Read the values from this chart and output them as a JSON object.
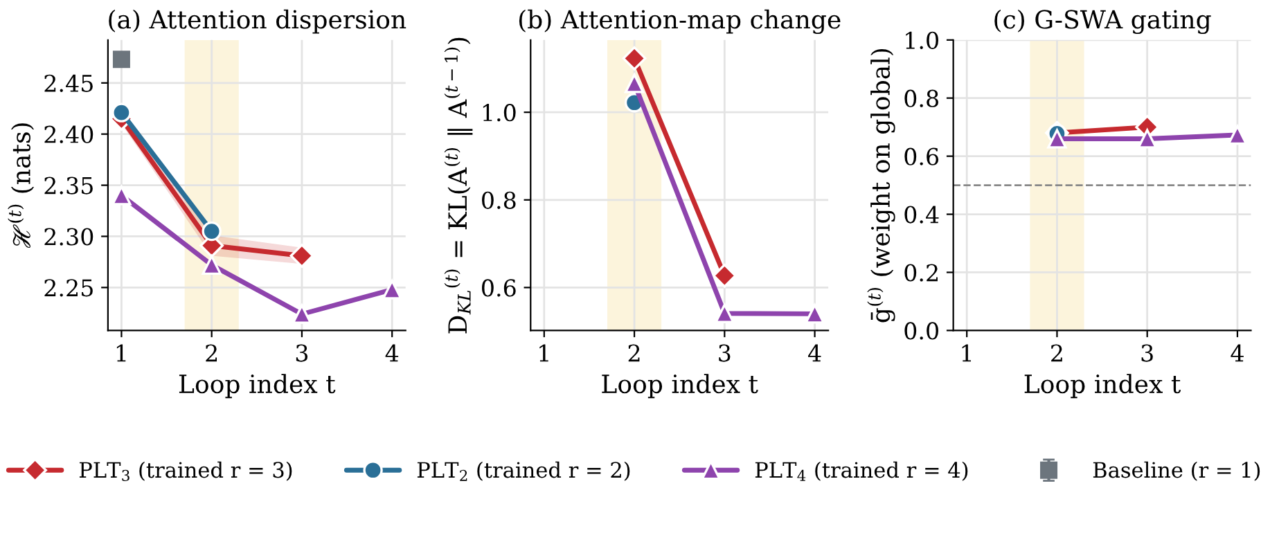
{
  "chart_data": [
    {
      "type": "line",
      "title": "(a) Attention dispersion",
      "xlabel": "Loop index t",
      "ylabel": "ℋ$^{(t)}$ (nats)",
      "xlim": [
        0.85,
        4.15
      ],
      "xticks": [
        1,
        2,
        3,
        4
      ],
      "ylim": [
        2.208,
        2.492
      ],
      "yticks": [
        2.25,
        {
          "value": 2.3,
          "label": "2.30"
        },
        2.35,
        {
          "value": 2.4,
          "label": "2.40"
        },
        2.45
      ],
      "grid": true,
      "legend": "bottom",
      "bands": [
        {
          "axis": "x",
          "from": 1.7,
          "to": 2.3,
          "color": "#fcf4dc"
        }
      ],
      "series": [
        {
          "name": "PLT$_{3}$ (trained r = 3)",
          "color": "#c62a2f",
          "marker": "diamond",
          "x": [
            1,
            2,
            3
          ],
          "values": [
            2.415,
            2.291,
            2.281
          ],
          "lower": [
            2.41,
            2.281,
            2.273
          ],
          "upper": [
            2.42,
            2.301,
            2.289
          ]
        },
        {
          "name": "PLT$_{2}$ (trained r = 2)",
          "color": "#2a6f97",
          "marker": "circle",
          "x": [
            1,
            2
          ],
          "values": [
            2.421,
            2.305
          ]
        },
        {
          "name": "PLT$_{4}$ (trained r = 4)",
          "color": "#8e44ad",
          "marker": "triangle",
          "x": [
            1,
            2,
            3,
            4
          ],
          "values": [
            2.34,
            2.272,
            2.224,
            2.248
          ]
        },
        {
          "name": "Baseline (r = 1)",
          "type": "scatter",
          "color": "#6c757d",
          "marker": "square",
          "x": [
            1
          ],
          "values": [
            2.473
          ],
          "errors": [
            0.003
          ]
        }
      ]
    },
    {
      "type": "line",
      "title": "(b) Attention-map change",
      "xlabel": "Loop index t",
      "ylabel": "D$_{KL}$$^{(t)}$ = KL(A$^{(t)}$ ‖ A$^{(t−1)}$)",
      "xlim": [
        0.85,
        4.15
      ],
      "xticks": [
        1,
        2,
        3,
        4
      ],
      "ylim": [
        0.502,
        1.165
      ],
      "yticks": [
        0.6,
        0.8,
        {
          "value": 1.0,
          "label": "1.0"
        }
      ],
      "grid": true,
      "bands": [
        {
          "axis": "x",
          "from": 1.7,
          "to": 2.3,
          "color": "#fcf4dc"
        }
      ],
      "series": [
        {
          "color": "#c62a2f",
          "marker": "diamond",
          "x": [
            2,
            3
          ],
          "values": [
            1.123,
            0.627
          ]
        },
        {
          "color": "#2a6f97",
          "marker": "circle",
          "x": [
            2
          ],
          "values": [
            1.022
          ]
        },
        {
          "color": "#8e44ad",
          "marker": "triangle",
          "x": [
            2,
            3,
            4
          ],
          "values": [
            1.066,
            0.541,
            0.54
          ]
        }
      ]
    },
    {
      "type": "line",
      "title": "(c) G-SWA gating",
      "xlabel": "Loop index t",
      "ylabel": "ḡ$^{(t)}$ (weight on global)",
      "xlim": [
        0.85,
        4.15
      ],
      "xticks": [
        1,
        2,
        3,
        4
      ],
      "ylim": [
        0,
        1
      ],
      "yticks": [
        {
          "value": 0.0,
          "label": "0.0"
        },
        0.2,
        0.4,
        0.6,
        0.8,
        {
          "value": 1.0,
          "label": "1.0"
        }
      ],
      "grid": true,
      "bands": [
        {
          "axis": "x",
          "from": 1.7,
          "to": 2.3,
          "color": "#fcf4dc"
        }
      ],
      "ref_lines": [
        {
          "axis": "y",
          "value": 0.5,
          "color": "#888888",
          "line_style": "dashed"
        }
      ],
      "series": [
        {
          "color": "#c62a2f",
          "marker": "diamond",
          "x": [
            2,
            3
          ],
          "values": [
            0.68,
            0.7
          ]
        },
        {
          "color": "#2a6f97",
          "marker": "circle",
          "x": [
            2
          ],
          "values": [
            0.678
          ]
        },
        {
          "color": "#8e44ad",
          "marker": "triangle",
          "x": [
            2,
            3,
            4
          ],
          "values": [
            0.66,
            0.66,
            0.673
          ]
        }
      ]
    }
  ]
}
